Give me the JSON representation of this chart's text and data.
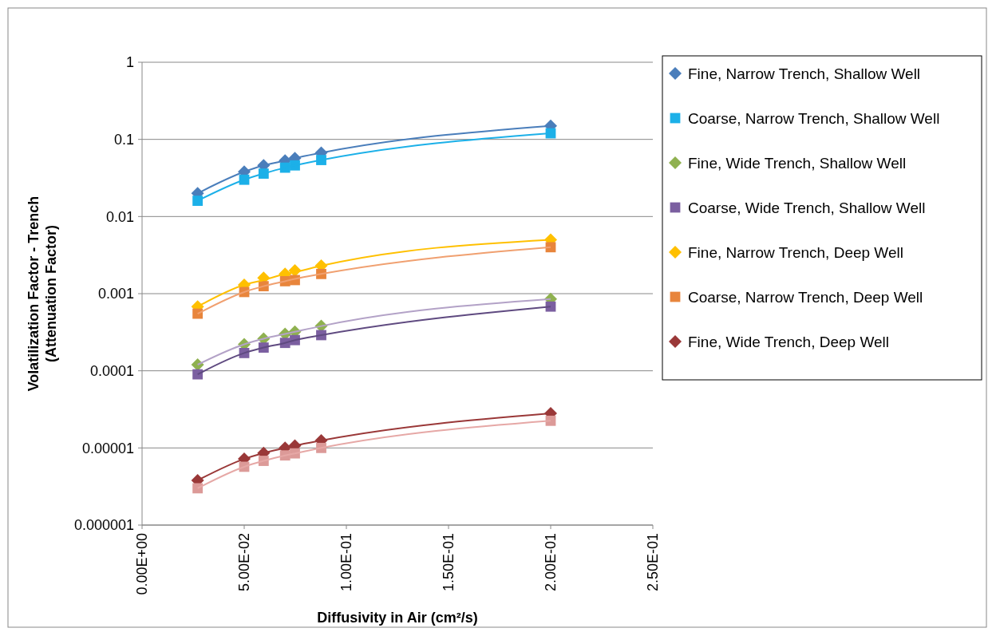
{
  "chart_data": {
    "type": "scatter",
    "xlabel": "Diffusivity in Air (cm²/s)",
    "ylabel": "Volatilization Factor - Trench\n(Attenuation Factor)",
    "log": "y",
    "grid": "y",
    "legend": "right",
    "xlim": [
      0,
      0.25
    ],
    "xticks": [
      {
        "value": 0,
        "label": "0.00E+00"
      },
      {
        "value": 0.05,
        "label": "5.00E-02"
      },
      {
        "value": 0.1,
        "label": "1.00E-01"
      },
      {
        "value": 0.15,
        "label": "1.50E-01"
      },
      {
        "value": 0.2,
        "label": "2.00E-01"
      },
      {
        "value": 0.25,
        "label": "2.50E-01"
      }
    ],
    "ylim": [
      1e-06,
      1
    ],
    "yticks": [
      {
        "value": 1,
        "label": "1"
      },
      {
        "value": 0.1,
        "label": "0.1"
      },
      {
        "value": 0.01,
        "label": "0.01"
      },
      {
        "value": 0.001,
        "label": "0.001"
      },
      {
        "value": 0.0001,
        "label": "0.0001"
      },
      {
        "value": 1e-05,
        "label": "0.00001"
      },
      {
        "value": 1e-06,
        "label": "0.000001"
      }
    ],
    "x": [
      0.0272,
      0.05,
      0.0595,
      0.07,
      0.0748,
      0.0877,
      0.2
    ],
    "series": [
      {
        "name": "Fine, Narrow Trench, Shallow Well",
        "color": "#4a7ebb",
        "marker": "diamond",
        "values": [
          0.02,
          0.038,
          0.046,
          0.053,
          0.057,
          0.067,
          0.15
        ]
      },
      {
        "name": "Coarse, Narrow Trench, Shallow Well",
        "color": "#1cb0e8",
        "marker": "square",
        "values": [
          0.016,
          0.03,
          0.036,
          0.043,
          0.046,
          0.054,
          0.12
        ]
      },
      {
        "name": "Fine, Wide Trench, Shallow Well",
        "color": "#8fb150",
        "marker": "diamond",
        "values": [
          0.00012,
          0.00022,
          0.00026,
          0.0003,
          0.00032,
          0.00038,
          0.00085
        ]
      },
      {
        "name": "Coarse, Wide Trench, Shallow Well",
        "color": "#7b5fa0",
        "marker": "square",
        "values": [
          9e-05,
          0.00017,
          0.0002,
          0.00023,
          0.00025,
          0.00029,
          0.00068
        ]
      },
      {
        "name": "Fine, Narrow Trench, Deep Well",
        "color": "#ffc000",
        "marker": "diamond",
        "values": [
          0.00068,
          0.0013,
          0.0016,
          0.0018,
          0.002,
          0.0023,
          0.005
        ]
      },
      {
        "name": "Coarse, Narrow Trench, Deep Well",
        "color": "#e8853c",
        "marker": "square",
        "values": [
          0.00055,
          0.00105,
          0.00125,
          0.00145,
          0.0015,
          0.0018,
          0.004
        ]
      },
      {
        "name": "Fine, Wide Trench, Deep Well",
        "color": "#9a3838",
        "marker": "diamond",
        "values": [
          3.8e-06,
          7.2e-06,
          8.6e-06,
          1e-05,
          1.07e-05,
          1.25e-05,
          2.8e-05
        ]
      },
      {
        "color": "#dc9a98",
        "marker": "square",
        "values": [
          3e-06,
          5.7e-06,
          6.8e-06,
          8e-06,
          8.5e-06,
          1e-05,
          2.25e-05
        ]
      },
      {
        "type": "line",
        "color": "#4a7ebb",
        "marker": "none",
        "values": [
          0.02,
          0.038,
          0.046,
          0.053,
          0.057,
          0.067,
          0.15
        ]
      },
      {
        "type": "line",
        "color": "#1cb0e8",
        "marker": "none",
        "values": [
          0.016,
          0.03,
          0.036,
          0.043,
          0.046,
          0.054,
          0.12
        ]
      },
      {
        "type": "line",
        "color": "#b3a2c7",
        "marker": "none",
        "values": [
          0.00012,
          0.00022,
          0.00026,
          0.0003,
          0.00032,
          0.00038,
          0.00085
        ]
      },
      {
        "type": "line",
        "color": "#5f4a80",
        "marker": "none",
        "values": [
          9e-05,
          0.00017,
          0.0002,
          0.00023,
          0.00025,
          0.00029,
          0.00068
        ]
      },
      {
        "type": "line",
        "color": "#ffc000",
        "marker": "none",
        "values": [
          0.00068,
          0.0013,
          0.0015,
          0.0018,
          0.0019,
          0.0023,
          0.005
        ]
      },
      {
        "type": "line",
        "color": "#f0a070",
        "marker": "none",
        "values": [
          0.00055,
          0.00105,
          0.00125,
          0.00145,
          0.00155,
          0.0018,
          0.004
        ]
      },
      {
        "type": "line",
        "color": "#9a3838",
        "marker": "none",
        "values": [
          3.8e-06,
          7.2e-06,
          8.6e-06,
          1e-05,
          1.07e-05,
          1.25e-05,
          2.8e-05
        ]
      },
      {
        "type": "line",
        "color": "#e6a8a6",
        "marker": "none",
        "values": [
          3e-06,
          5.7e-06,
          6.8e-06,
          8e-06,
          8.5e-06,
          1e-05,
          2.25e-05
        ]
      }
    ]
  }
}
